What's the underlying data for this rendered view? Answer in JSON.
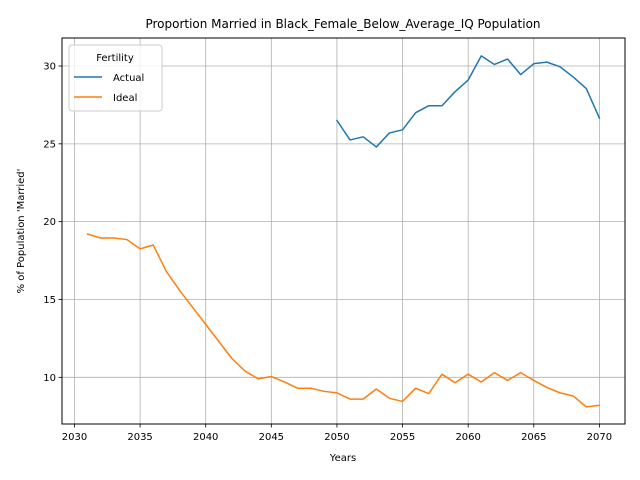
{
  "chart_data": {
    "type": "line",
    "title": "Proportion Married in Black_Female_Below_Average_IQ Population",
    "xlabel": "Years",
    "ylabel": "% of Population 'Married'",
    "xlim": [
      2029.05,
      2071.95
    ],
    "ylim": [
      7.0,
      31.8
    ],
    "xticks": [
      2030,
      2035,
      2040,
      2045,
      2050,
      2055,
      2060,
      2065,
      2070
    ],
    "yticks": [
      10,
      15,
      20,
      25,
      30
    ],
    "grid": true,
    "legend": {
      "title": "Fertility",
      "location": "upper-left"
    },
    "series": [
      {
        "name": "Actual",
        "color": "#1f77b4",
        "x": [
          2050,
          2051,
          2052,
          2053,
          2054,
          2055,
          2056,
          2057,
          2058,
          2059,
          2060,
          2061,
          2062,
          2063,
          2064,
          2065,
          2066,
          2067,
          2068,
          2069,
          2070
        ],
        "y": [
          26.5,
          25.25,
          25.45,
          24.8,
          25.7,
          25.9,
          27.0,
          27.45,
          27.45,
          28.35,
          29.1,
          30.65,
          30.1,
          30.45,
          29.45,
          30.15,
          30.25,
          29.95,
          29.3,
          28.55,
          26.65
        ]
      },
      {
        "name": "Ideal",
        "color": "#ff7f0e",
        "x": [
          2031,
          2032,
          2033,
          2034,
          2035,
          2036,
          2037,
          2038,
          2039,
          2040,
          2041,
          2042,
          2043,
          2044,
          2045,
          2046,
          2047,
          2048,
          2049,
          2050,
          2051,
          2052,
          2053,
          2054,
          2055,
          2056,
          2057,
          2058,
          2059,
          2060,
          2061,
          2062,
          2063,
          2064,
          2065,
          2066,
          2067,
          2068,
          2069,
          2070
        ],
        "y": [
          19.2,
          18.95,
          18.95,
          18.85,
          18.25,
          18.5,
          16.8,
          15.6,
          14.5,
          13.4,
          12.3,
          11.2,
          10.4,
          9.9,
          10.05,
          9.7,
          9.3,
          9.3,
          9.1,
          9.0,
          8.6,
          8.6,
          9.25,
          8.65,
          8.45,
          9.3,
          8.95,
          10.2,
          9.65,
          10.2,
          9.7,
          10.3,
          9.8,
          10.3,
          9.8,
          9.35,
          9.0,
          8.8,
          8.1,
          8.2
        ]
      }
    ]
  }
}
